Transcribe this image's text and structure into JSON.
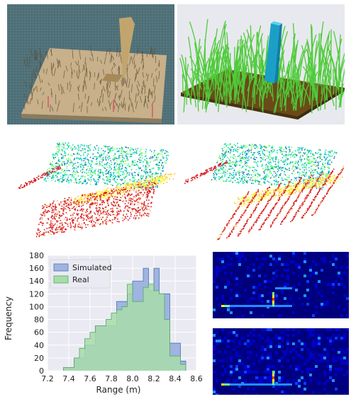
{
  "photos": {
    "real": {
      "subject": "photo of wooden board with grass and wooden block"
    },
    "sim": {
      "subject": "rendered simulated grass patch with blue block"
    }
  },
  "pointclouds": {
    "colormap": [
      "#d7191c",
      "#fdae61",
      "#ffff33",
      "#66ff66",
      "#00cccc",
      "#1f78b4"
    ]
  },
  "chart_data": {
    "type": "bar",
    "xlabel": "Range (m)",
    "ylabel": "Frequency",
    "xlim": [
      7.2,
      8.6
    ],
    "ylim": [
      0,
      180
    ],
    "xticks": [
      "7.2",
      "7.4",
      "7.6",
      "7.8",
      "8.0",
      "8.2",
      "8.4",
      "8.6"
    ],
    "yticks": [
      "0",
      "20",
      "40",
      "60",
      "80",
      "100",
      "120",
      "140",
      "160",
      "180"
    ],
    "legend": "top-left",
    "grid": true,
    "bin_edges": [
      7.35,
      7.4,
      7.45,
      7.5,
      7.55,
      7.6,
      7.65,
      7.7,
      7.75,
      7.8,
      7.85,
      7.9,
      7.95,
      8.0,
      8.05,
      8.1,
      8.15,
      8.2,
      8.25,
      8.3,
      8.35,
      8.4,
      8.45,
      8.5
    ],
    "series": [
      {
        "name": "Simulated",
        "color": "#4c72b0",
        "fill": "#9fb4e0",
        "values": [
          5,
          5,
          20,
          20,
          40,
          40,
          70,
          70,
          70,
          70,
          108,
          108,
          120,
          140,
          140,
          160,
          125,
          160,
          120,
          120,
          43,
          43,
          15
        ]
      },
      {
        "name": "Real",
        "color": "#55a868",
        "fill": "#a8dca9",
        "values": [
          5,
          5,
          20,
          35,
          50,
          60,
          70,
          70,
          80,
          90,
          95,
          100,
          135,
          108,
          108,
          130,
          135,
          125,
          120,
          80,
          23,
          23,
          10
        ]
      }
    ]
  },
  "heatmaps": {
    "background": "#00007a",
    "cell_colors": [
      "#00008f",
      "#0000c8",
      "#0a3cff",
      "#1e90ff",
      "#00e5ff",
      "#7fff7f",
      "#ffff00",
      "#ff4000"
    ]
  }
}
